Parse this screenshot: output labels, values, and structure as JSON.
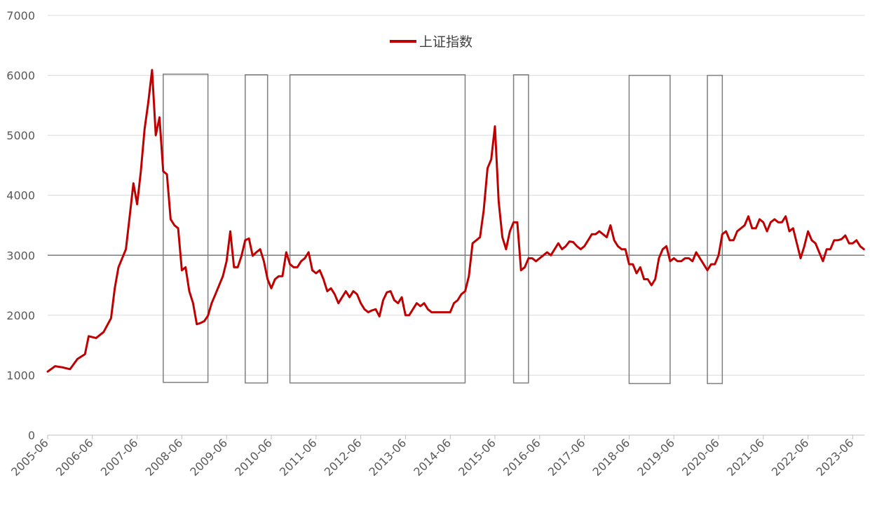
{
  "chart_data": {
    "type": "line",
    "title": "",
    "xlabel": "",
    "ylabel": "",
    "ylim": [
      0,
      7000
    ],
    "xlim": [
      "2005-06",
      "2023-09"
    ],
    "grid": true,
    "legend_position": "top-center",
    "y_ticks": [
      "0",
      "1000",
      "2000",
      "3000",
      "4000",
      "5000",
      "6000",
      "7000"
    ],
    "x_ticks": [
      "2005-06",
      "2006-06",
      "2007-06",
      "2008-06",
      "2009-06",
      "2010-06",
      "2011-06",
      "2012-06",
      "2013-06",
      "2014-06",
      "2015-06",
      "2016-06",
      "2017-06",
      "2018-06",
      "2019-06",
      "2020-06",
      "2021-06",
      "2022-06",
      "2023-06"
    ],
    "reference_line": {
      "y": 3000,
      "color": "#666666"
    },
    "series": [
      {
        "name": "上证指数",
        "color": "#c00000",
        "points": [
          [
            "2005-06",
            1060
          ],
          [
            "2005-08",
            1150
          ],
          [
            "2005-10",
            1130
          ],
          [
            "2005-12",
            1100
          ],
          [
            "2006-02",
            1270
          ],
          [
            "2006-04",
            1350
          ],
          [
            "2006-05",
            1650
          ],
          [
            "2006-07",
            1620
          ],
          [
            "2006-09",
            1720
          ],
          [
            "2006-11",
            1950
          ],
          [
            "2006-12",
            2450
          ],
          [
            "2007-01",
            2800
          ],
          [
            "2007-02",
            2950
          ],
          [
            "2007-03",
            3100
          ],
          [
            "2007-04",
            3650
          ],
          [
            "2007-05",
            4200
          ],
          [
            "2007-06",
            3850
          ],
          [
            "2007-07",
            4400
          ],
          [
            "2007-08",
            5100
          ],
          [
            "2007-09",
            5550
          ],
          [
            "2007-10",
            6090
          ],
          [
            "2007-11",
            5000
          ],
          [
            "2007-12",
            5300
          ],
          [
            "2008-01",
            4400
          ],
          [
            "2008-02",
            4350
          ],
          [
            "2008-03",
            3600
          ],
          [
            "2008-04",
            3500
          ],
          [
            "2008-05",
            3450
          ],
          [
            "2008-06",
            2750
          ],
          [
            "2008-07",
            2800
          ],
          [
            "2008-08",
            2400
          ],
          [
            "2008-09",
            2200
          ],
          [
            "2008-10",
            1850
          ],
          [
            "2008-11",
            1870
          ],
          [
            "2008-12",
            1900
          ],
          [
            "2009-01",
            1990
          ],
          [
            "2009-02",
            2200
          ],
          [
            "2009-03",
            2350
          ],
          [
            "2009-04",
            2500
          ],
          [
            "2009-05",
            2650
          ],
          [
            "2009-06",
            2900
          ],
          [
            "2009-07",
            3400
          ],
          [
            "2009-08",
            2800
          ],
          [
            "2009-09",
            2800
          ],
          [
            "2009-10",
            2990
          ],
          [
            "2009-11",
            3250
          ],
          [
            "2009-12",
            3280
          ],
          [
            "2010-01",
            2990
          ],
          [
            "2010-02",
            3050
          ],
          [
            "2010-03",
            3100
          ],
          [
            "2010-04",
            2900
          ],
          [
            "2010-05",
            2600
          ],
          [
            "2010-06",
            2450
          ],
          [
            "2010-07",
            2600
          ],
          [
            "2010-08",
            2650
          ],
          [
            "2010-09",
            2650
          ],
          [
            "2010-10",
            3050
          ],
          [
            "2010-11",
            2850
          ],
          [
            "2010-12",
            2800
          ],
          [
            "2011-01",
            2800
          ],
          [
            "2011-02",
            2900
          ],
          [
            "2011-03",
            2950
          ],
          [
            "2011-04",
            3050
          ],
          [
            "2011-05",
            2750
          ],
          [
            "2011-06",
            2700
          ],
          [
            "2011-07",
            2750
          ],
          [
            "2011-08",
            2600
          ],
          [
            "2011-09",
            2400
          ],
          [
            "2011-10",
            2450
          ],
          [
            "2011-11",
            2350
          ],
          [
            "2011-12",
            2200
          ],
          [
            "2012-01",
            2300
          ],
          [
            "2012-02",
            2400
          ],
          [
            "2012-03",
            2300
          ],
          [
            "2012-04",
            2400
          ],
          [
            "2012-05",
            2350
          ],
          [
            "2012-06",
            2200
          ],
          [
            "2012-07",
            2100
          ],
          [
            "2012-08",
            2050
          ],
          [
            "2012-09",
            2080
          ],
          [
            "2012-10",
            2100
          ],
          [
            "2012-11",
            1980
          ],
          [
            "2012-12",
            2250
          ],
          [
            "2013-01",
            2380
          ],
          [
            "2013-02",
            2400
          ],
          [
            "2013-03",
            2250
          ],
          [
            "2013-04",
            2200
          ],
          [
            "2013-05",
            2300
          ],
          [
            "2013-06",
            2000
          ],
          [
            "2013-07",
            2000
          ],
          [
            "2013-08",
            2100
          ],
          [
            "2013-09",
            2200
          ],
          [
            "2013-10",
            2150
          ],
          [
            "2013-11",
            2200
          ],
          [
            "2013-12",
            2100
          ],
          [
            "2014-01",
            2050
          ],
          [
            "2014-02",
            2050
          ],
          [
            "2014-03",
            2050
          ],
          [
            "2014-04",
            2050
          ],
          [
            "2014-05",
            2050
          ],
          [
            "2014-06",
            2050
          ],
          [
            "2014-07",
            2200
          ],
          [
            "2014-08",
            2250
          ],
          [
            "2014-09",
            2350
          ],
          [
            "2014-10",
            2400
          ],
          [
            "2014-11",
            2650
          ],
          [
            "2014-12",
            3200
          ],
          [
            "2015-01",
            3250
          ],
          [
            "2015-02",
            3300
          ],
          [
            "2015-03",
            3750
          ],
          [
            "2015-04",
            4450
          ],
          [
            "2015-05",
            4600
          ],
          [
            "2015-06",
            5150
          ],
          [
            "2015-07",
            3900
          ],
          [
            "2015-08",
            3300
          ],
          [
            "2015-09",
            3100
          ],
          [
            "2015-10",
            3400
          ],
          [
            "2015-11",
            3550
          ],
          [
            "2015-12",
            3550
          ],
          [
            "2016-01",
            2750
          ],
          [
            "2016-02",
            2800
          ],
          [
            "2016-03",
            2950
          ],
          [
            "2016-04",
            2950
          ],
          [
            "2016-05",
            2900
          ],
          [
            "2016-06",
            2950
          ],
          [
            "2016-07",
            3000
          ],
          [
            "2016-08",
            3050
          ],
          [
            "2016-09",
            3000
          ],
          [
            "2016-10",
            3100
          ],
          [
            "2016-11",
            3200
          ],
          [
            "2016-12",
            3100
          ],
          [
            "2017-01",
            3150
          ],
          [
            "2017-02",
            3230
          ],
          [
            "2017-03",
            3220
          ],
          [
            "2017-04",
            3150
          ],
          [
            "2017-05",
            3100
          ],
          [
            "2017-06",
            3150
          ],
          [
            "2017-07",
            3250
          ],
          [
            "2017-08",
            3350
          ],
          [
            "2017-09",
            3350
          ],
          [
            "2017-10",
            3400
          ],
          [
            "2017-11",
            3350
          ],
          [
            "2017-12",
            3300
          ],
          [
            "2018-01",
            3500
          ],
          [
            "2018-02",
            3250
          ],
          [
            "2018-03",
            3150
          ],
          [
            "2018-04",
            3100
          ],
          [
            "2018-05",
            3100
          ],
          [
            "2018-06",
            2850
          ],
          [
            "2018-07",
            2850
          ],
          [
            "2018-08",
            2700
          ],
          [
            "2018-09",
            2800
          ],
          [
            "2018-10",
            2600
          ],
          [
            "2018-11",
            2600
          ],
          [
            "2018-12",
            2500
          ],
          [
            "2019-01",
            2600
          ],
          [
            "2019-02",
            2950
          ],
          [
            "2019-03",
            3100
          ],
          [
            "2019-04",
            3150
          ],
          [
            "2019-05",
            2900
          ],
          [
            "2019-06",
            2950
          ],
          [
            "2019-07",
            2900
          ],
          [
            "2019-08",
            2900
          ],
          [
            "2019-09",
            2950
          ],
          [
            "2019-10",
            2950
          ],
          [
            "2019-11",
            2900
          ],
          [
            "2019-12",
            3050
          ],
          [
            "2020-01",
            2950
          ],
          [
            "2020-02",
            2850
          ],
          [
            "2020-03",
            2750
          ],
          [
            "2020-04",
            2850
          ],
          [
            "2020-05",
            2850
          ],
          [
            "2020-06",
            3000
          ],
          [
            "2020-07",
            3350
          ],
          [
            "2020-08",
            3400
          ],
          [
            "2020-09",
            3250
          ],
          [
            "2020-10",
            3250
          ],
          [
            "2020-11",
            3400
          ],
          [
            "2020-12",
            3450
          ],
          [
            "2021-01",
            3500
          ],
          [
            "2021-02",
            3650
          ],
          [
            "2021-03",
            3450
          ],
          [
            "2021-04",
            3450
          ],
          [
            "2021-05",
            3600
          ],
          [
            "2021-06",
            3550
          ],
          [
            "2021-07",
            3400
          ],
          [
            "2021-08",
            3550
          ],
          [
            "2021-09",
            3600
          ],
          [
            "2021-10",
            3550
          ],
          [
            "2021-11",
            3550
          ],
          [
            "2021-12",
            3650
          ],
          [
            "2022-01",
            3400
          ],
          [
            "2022-02",
            3450
          ],
          [
            "2022-03",
            3200
          ],
          [
            "2022-04",
            2950
          ],
          [
            "2022-05",
            3150
          ],
          [
            "2022-06",
            3400
          ],
          [
            "2022-07",
            3250
          ],
          [
            "2022-08",
            3200
          ],
          [
            "2022-09",
            3050
          ],
          [
            "2022-10",
            2900
          ],
          [
            "2022-11",
            3100
          ],
          [
            "2022-12",
            3100
          ],
          [
            "2023-01",
            3250
          ],
          [
            "2023-02",
            3250
          ],
          [
            "2023-03",
            3270
          ],
          [
            "2023-04",
            3330
          ],
          [
            "2023-05",
            3200
          ],
          [
            "2023-06",
            3200
          ],
          [
            "2023-07",
            3250
          ],
          [
            "2023-08",
            3150
          ],
          [
            "2023-09",
            3100
          ]
        ]
      }
    ],
    "annotation_boxes": [
      {
        "x_start": "2008-01",
        "x_end": "2009-01",
        "y_bottom": 880,
        "y_top": 6020
      },
      {
        "x_start": "2009-11",
        "x_end": "2010-05",
        "y_bottom": 870,
        "y_top": 6010
      },
      {
        "x_start": "2010-11",
        "x_end": "2014-10",
        "y_bottom": 870,
        "y_top": 6010
      },
      {
        "x_start": "2015-11",
        "x_end": "2016-03",
        "y_bottom": 870,
        "y_top": 6010
      },
      {
        "x_start": "2018-06",
        "x_end": "2019-05",
        "y_bottom": 860,
        "y_top": 6000
      },
      {
        "x_start": "2020-03",
        "x_end": "2020-07",
        "y_bottom": 860,
        "y_top": 6000
      }
    ]
  }
}
